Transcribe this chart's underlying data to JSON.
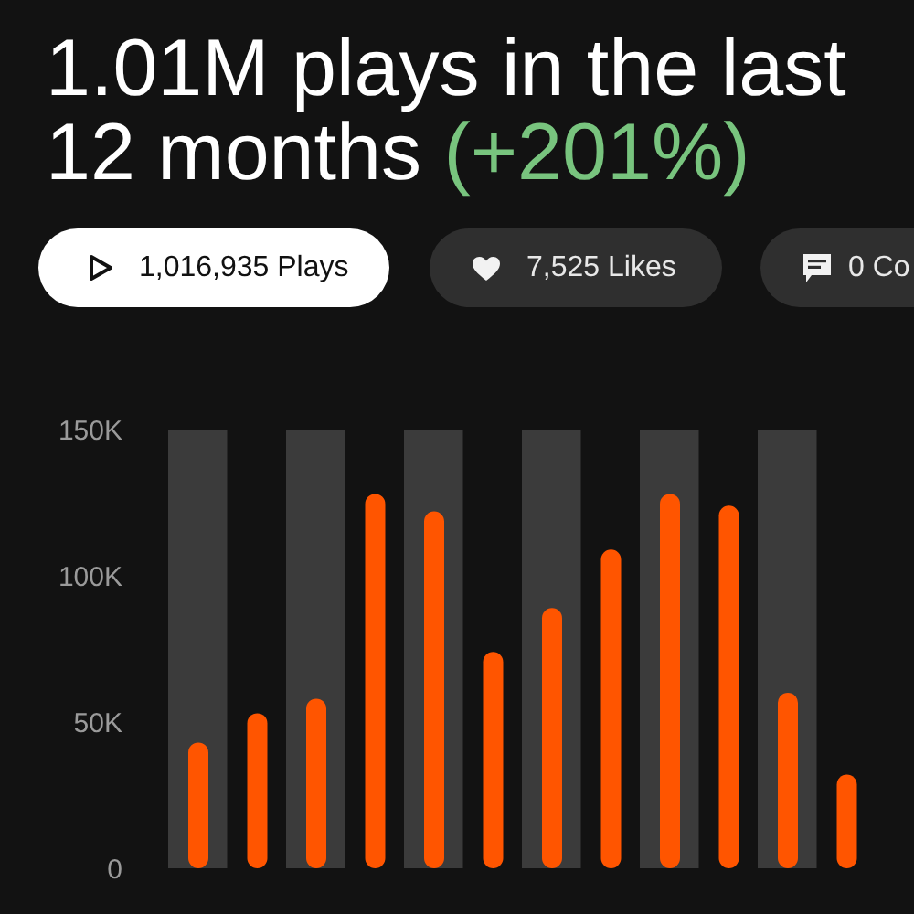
{
  "chart_data": {
    "type": "bar",
    "title": "1.01M plays in the last 12 months",
    "annotations": [
      "(+201%)",
      "1,016,935 Plays",
      "7,525 Likes",
      "0 Co"
    ],
    "categories": [
      null,
      null,
      null,
      null,
      null,
      null,
      null,
      null,
      null,
      null,
      null,
      null
    ],
    "values": [
      43000,
      53000,
      58000,
      128000,
      122000,
      74000,
      89000,
      109000,
      128000,
      124000,
      60000,
      32000
    ],
    "color": "#ff5500",
    "ylim": [
      0,
      150000
    ],
    "yticks": [
      0,
      {
        "value": 50000,
        "label": "50K"
      },
      {
        "value": 100000,
        "label": "100K"
      },
      {
        "value": 150000,
        "label": "150K"
      }
    ],
    "tick_labels": "y"
  }
}
